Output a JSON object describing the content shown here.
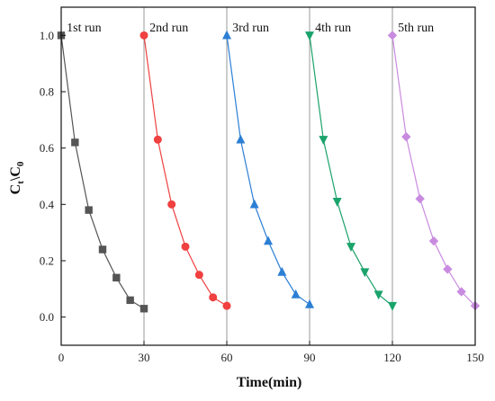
{
  "chart_data": {
    "type": "line",
    "xlabel": "Time(min)",
    "ylabel_main": "C",
    "ylabel_sub1": "t",
    "ylabel_mid": "\\C",
    "ylabel_sub2": "0",
    "xlim": [
      0,
      150
    ],
    "ylim": [
      -0.1,
      1.1
    ],
    "x_ticks": [
      0,
      30,
      60,
      90,
      120,
      150
    ],
    "y_ticks": [
      0.0,
      0.2,
      0.4,
      0.6,
      0.8,
      1.0
    ],
    "x_tick_labels": [
      "0",
      "30",
      "60",
      "90",
      "120",
      "150"
    ],
    "y_tick_labels": [
      "0.0",
      "0.2",
      "0.4",
      "0.6",
      "0.8",
      "1.0"
    ],
    "run_separators_x": [
      30,
      60,
      90,
      120
    ],
    "runs": [
      {
        "label": "1st run",
        "label_x": 2,
        "color": "#555555",
        "marker": "square",
        "x": [
          0,
          5,
          10,
          15,
          20,
          25,
          30
        ],
        "y": [
          1.0,
          0.62,
          0.38,
          0.24,
          0.14,
          0.06,
          0.03
        ]
      },
      {
        "label": "2nd run",
        "label_x": 32,
        "color": "#f04040",
        "marker": "circle",
        "x": [
          30,
          35,
          40,
          45,
          50,
          55,
          60
        ],
        "y": [
          1.0,
          0.63,
          0.4,
          0.25,
          0.15,
          0.07,
          0.04
        ]
      },
      {
        "label": "3rd run",
        "label_x": 62,
        "color": "#2b7fd4",
        "marker": "triangle-up",
        "x": [
          60,
          65,
          70,
          75,
          80,
          85,
          90
        ],
        "y": [
          1.0,
          0.63,
          0.4,
          0.27,
          0.16,
          0.08,
          0.045
        ]
      },
      {
        "label": "4th run",
        "label_x": 92,
        "color": "#1aa36b",
        "marker": "triangle-down",
        "x": [
          90,
          95,
          100,
          105,
          110,
          115,
          120
        ],
        "y": [
          1.0,
          0.63,
          0.41,
          0.25,
          0.16,
          0.08,
          0.04
        ]
      },
      {
        "label": "5th run",
        "label_x": 122,
        "color": "#c98be0",
        "marker": "diamond",
        "x": [
          120,
          125,
          130,
          135,
          140,
          145,
          150
        ],
        "y": [
          1.0,
          0.64,
          0.42,
          0.27,
          0.17,
          0.09,
          0.04
        ]
      }
    ]
  }
}
